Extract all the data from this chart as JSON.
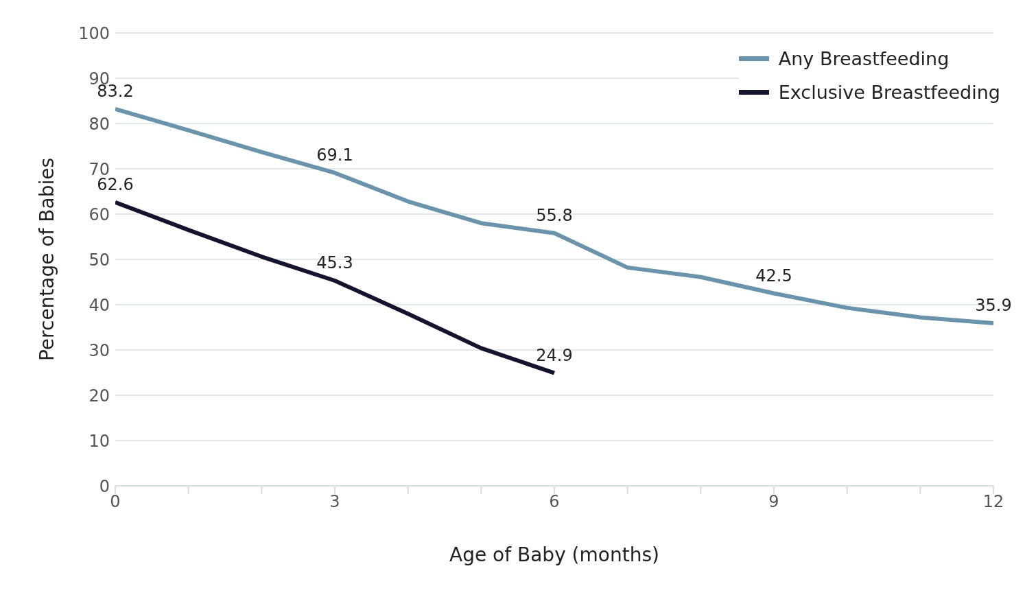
{
  "chart_data": {
    "type": "line",
    "xlabel": "Age of Baby (months)",
    "ylabel": "Percentage of Babies",
    "x": [
      0,
      1,
      2,
      3,
      4,
      5,
      6,
      7,
      8,
      9,
      10,
      11,
      12
    ],
    "series": [
      {
        "name": "Any Breastfeeding",
        "color": "#6a93ac",
        "values": [
          83.2,
          78.5,
          73.7,
          69.1,
          62.8,
          58.0,
          55.8,
          48.2,
          46.1,
          42.5,
          39.3,
          37.2,
          35.9
        ],
        "value_labels": [
          "83.2",
          null,
          null,
          "69.1",
          null,
          null,
          "55.8",
          null,
          null,
          "42.5",
          null,
          null,
          "35.9"
        ]
      },
      {
        "name": "Exclusive Breastfeeding",
        "color": "#14142e",
        "values": [
          62.6,
          56.5,
          50.6,
          45.3,
          38.0,
          30.4,
          24.9,
          null,
          null,
          null,
          null,
          null,
          null
        ],
        "value_labels": [
          "62.6",
          null,
          null,
          "45.3",
          null,
          null,
          "24.9",
          null,
          null,
          null,
          null,
          null,
          null
        ]
      }
    ],
    "xlim": [
      0,
      12
    ],
    "xticks": [
      0,
      {
        "value": 1,
        "label": null
      },
      {
        "value": 2,
        "label": null
      },
      3,
      {
        "value": 4,
        "label": null
      },
      {
        "value": 5,
        "label": null
      },
      6,
      {
        "value": 7,
        "label": null
      },
      {
        "value": 8,
        "label": null
      },
      9,
      {
        "value": 10,
        "label": null
      },
      {
        "value": 11,
        "label": null
      },
      12
    ],
    "ylim": [
      0,
      100
    ],
    "yticks": [
      0,
      10,
      20,
      30,
      40,
      50,
      60,
      70,
      80,
      90,
      100
    ],
    "grid": "y",
    "legend": "top right",
    "marker": "none",
    "line_style": "solid"
  }
}
